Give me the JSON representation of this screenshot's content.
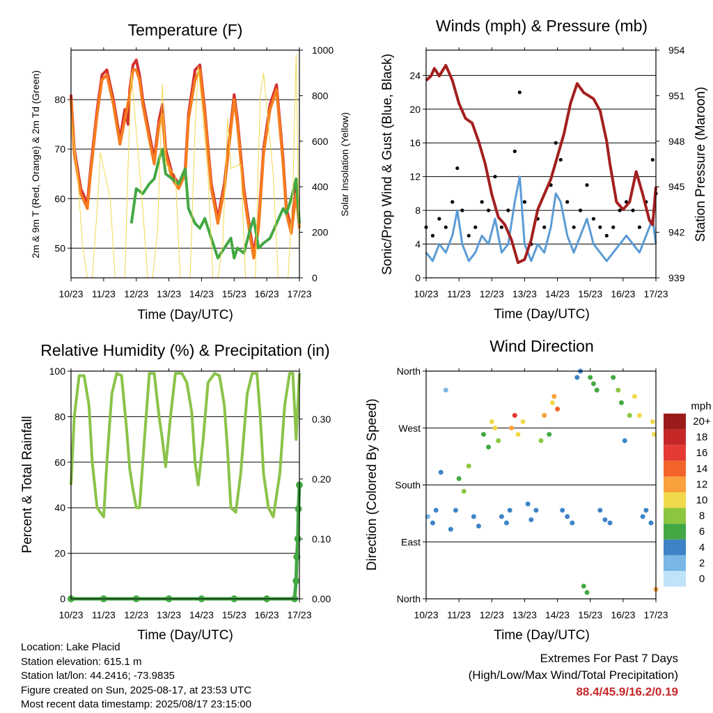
{
  "chart_data": [
    {
      "type": "line",
      "title": "Temperature (F)",
      "xlabel": "Time (Day/UTC)",
      "ylabel": "2m & 9m T (Red, Orange) & 2m Td (Green)",
      "y2label": "Solar Insolation (Yellow)",
      "x_tick_labels": [
        "10/23",
        "11/23",
        "12/23",
        "13/23",
        "14/23",
        "15/23",
        "16/23",
        "17/23"
      ],
      "ylim": [
        44,
        90
      ],
      "y_ticks": [
        50,
        60,
        70,
        80
      ],
      "y2lim": [
        0,
        1000
      ],
      "y2_ticks": [
        0,
        200,
        400,
        600,
        800,
        1000
      ],
      "grid": "horizontal",
      "series": [
        {
          "color": "#d32f2f",
          "x": [
            10.0,
            10.1,
            10.3,
            10.5,
            10.6,
            10.8,
            10.95,
            11.1,
            11.3,
            11.5,
            11.65,
            11.75,
            11.8,
            11.9,
            12.0,
            12.1,
            12.2,
            12.4,
            12.55,
            12.7,
            12.8,
            12.9,
            13.1,
            13.3,
            13.5,
            13.6,
            13.8,
            13.95,
            14.1,
            14.3,
            14.5,
            14.7,
            14.9,
            15.0,
            15.1,
            15.3,
            15.5,
            15.6,
            15.75,
            15.9,
            16.1,
            16.3,
            16.5,
            16.6,
            16.75,
            16.9,
            17.0
          ],
          "y": [
            81,
            70,
            62,
            59,
            66,
            78,
            85,
            86,
            80,
            72,
            78,
            75,
            82,
            87,
            88,
            85,
            80,
            73,
            68,
            76,
            79,
            70,
            65,
            63,
            66,
            77,
            86,
            87,
            78,
            63,
            56,
            63,
            75,
            81,
            76,
            62,
            53,
            49,
            55,
            70,
            79,
            83,
            68,
            58,
            54,
            62,
            55
          ]
        },
        {
          "color": "#f57c1f",
          "x": [
            10.0,
            10.1,
            10.3,
            10.5,
            10.6,
            10.8,
            10.95,
            11.1,
            11.3,
            11.5,
            11.8,
            11.9,
            12.0,
            12.1,
            12.2,
            12.4,
            12.55,
            12.7,
            12.8,
            12.9,
            13.1,
            13.3,
            13.5,
            13.6,
            13.8,
            13.95,
            14.1,
            14.3,
            14.5,
            14.7,
            14.9,
            15.0,
            15.1,
            15.3,
            15.5,
            15.6,
            15.75,
            15.9,
            16.1,
            16.3,
            16.5,
            16.6,
            16.75,
            16.9,
            17.0
          ],
          "y": [
            80,
            69,
            61,
            58,
            65,
            77,
            84,
            85,
            79,
            71,
            81,
            86,
            86,
            84,
            79,
            72,
            67,
            75,
            77,
            69,
            64,
            62,
            65,
            76,
            84,
            86,
            77,
            62,
            55,
            62,
            74,
            80,
            75,
            61,
            52,
            48,
            54,
            69,
            78,
            82,
            67,
            57,
            53,
            61,
            54
          ]
        },
        {
          "color": "#43a843",
          "x": [
            11.85,
            12.0,
            12.2,
            12.4,
            12.55,
            12.7,
            12.8,
            12.9,
            13.1,
            13.3,
            13.5,
            13.6,
            13.8,
            13.95,
            14.1,
            14.3,
            14.5,
            14.7,
            14.9,
            15.0,
            15.1,
            15.3,
            15.5,
            15.6,
            15.75,
            15.9,
            16.1,
            16.3,
            16.5,
            16.6,
            16.75,
            16.9,
            17.0
          ],
          "y": [
            55,
            62,
            61,
            63,
            64,
            68,
            70,
            65,
            64,
            63,
            66,
            58,
            55,
            54,
            56,
            52,
            48,
            50,
            52,
            48,
            50,
            49,
            54,
            56,
            50,
            51,
            52,
            55,
            58,
            57,
            60,
            64,
            55
          ]
        },
        {
          "color": "#f2d84b",
          "x": [
            10.0,
            10.2,
            10.35,
            10.5,
            10.65,
            10.8,
            10.9,
            11.2,
            11.35,
            11.5,
            11.65,
            11.75,
            11.85,
            12.2,
            12.35,
            12.5,
            12.65,
            12.8,
            12.9,
            13.2,
            13.35,
            13.5,
            13.65,
            13.8,
            13.9,
            14.2,
            14.35,
            14.5,
            14.65,
            14.8,
            14.9,
            15.2,
            15.35,
            15.5,
            15.65,
            15.8,
            15.9,
            16.2,
            16.35,
            16.5,
            16.65,
            16.8,
            16.9,
            17.0
          ],
          "y": [
            700,
            450,
            150,
            0,
            0,
            300,
            550,
            350,
            0,
            0,
            0,
            500,
            900,
            300,
            0,
            0,
            200,
            850,
            500,
            450,
            0,
            0,
            0,
            650,
            930,
            450,
            0,
            0,
            150,
            700,
            480,
            500,
            0,
            0,
            0,
            800,
            900,
            450,
            0,
            0,
            0,
            380,
            980,
            100
          ]
        }
      ]
    },
    {
      "type": "line",
      "title": "Winds (mph) & Pressure (mb)",
      "xlabel": "Time (Day/UTC)",
      "ylabel": "Sonic/Prop Wind & Gust (Blue, Black)",
      "y2label": "Station Pressure (Maroon)",
      "x_tick_labels": [
        "10/23",
        "11/23",
        "12/23",
        "13/23",
        "14/23",
        "15/23",
        "16/23",
        "17/23"
      ],
      "ylim": [
        0,
        27
      ],
      "y_ticks": [
        0,
        4,
        8,
        12,
        16,
        20,
        24
      ],
      "y2lim": [
        939,
        954
      ],
      "y2_ticks": [
        939,
        942,
        945,
        948,
        951,
        954
      ],
      "grid": "horizontal",
      "series": [
        {
          "color": "#5b9bd5",
          "x": [
            10.0,
            10.2,
            10.4,
            10.6,
            10.8,
            10.95,
            11.1,
            11.3,
            11.5,
            11.7,
            11.9,
            12.1,
            12.3,
            12.5,
            12.7,
            12.85,
            13.0,
            13.2,
            13.4,
            13.6,
            13.8,
            13.95,
            14.1,
            14.3,
            14.5,
            14.7,
            14.9,
            15.1,
            15.3,
            15.5,
            15.7,
            15.9,
            16.1,
            16.3,
            16.5,
            16.7,
            16.9,
            17.0
          ],
          "y": [
            3,
            2,
            4,
            3,
            5,
            8,
            4,
            2,
            3,
            5,
            4,
            7,
            3,
            4,
            9,
            12,
            4,
            2,
            4,
            3,
            6,
            10,
            9,
            5,
            3,
            5,
            7,
            4,
            3,
            2,
            3,
            4,
            5,
            4,
            3,
            5,
            7,
            4
          ]
        },
        {
          "color": "#000000",
          "x": [
            10.0,
            10.2,
            10.4,
            10.6,
            10.8,
            10.95,
            11.1,
            11.3,
            11.5,
            11.7,
            11.9,
            12.1,
            12.3,
            12.5,
            12.7,
            12.85,
            13.0,
            13.2,
            13.4,
            13.6,
            13.8,
            13.95,
            14.1,
            14.3,
            14.5,
            14.7,
            14.9,
            15.1,
            15.3,
            15.5,
            15.7,
            15.9,
            16.1,
            16.3,
            16.5,
            16.7,
            16.9,
            17.0
          ],
          "y": [
            6,
            5,
            7,
            6,
            9,
            13,
            8,
            5,
            6,
            9,
            8,
            12,
            6,
            8,
            15,
            22,
            9,
            4,
            7,
            6,
            11,
            16,
            14,
            9,
            6,
            8,
            11,
            7,
            6,
            5,
            6,
            8,
            9,
            8,
            6,
            9,
            14,
            10
          ]
        },
        {
          "color": "#a31f1f",
          "x": [
            10.0,
            10.15,
            10.25,
            10.4,
            10.6,
            10.8,
            11.0,
            11.2,
            11.4,
            11.6,
            11.8,
            12.0,
            12.2,
            12.4,
            12.6,
            12.8,
            13.0,
            13.2,
            13.4,
            13.6,
            13.8,
            14.0,
            14.2,
            14.4,
            14.6,
            14.8,
            14.95,
            15.1,
            15.3,
            15.5,
            15.6,
            15.8,
            16.0,
            16.2,
            16.4,
            16.6,
            16.8,
            16.9,
            17.0
          ],
          "y": [
            952.0,
            952.3,
            952.8,
            952.3,
            953.0,
            952.0,
            950.5,
            949.5,
            949.2,
            948.0,
            946.5,
            944.5,
            943.0,
            942.5,
            941.5,
            940.0,
            940.2,
            941.5,
            943.5,
            944.5,
            945.5,
            947.0,
            948.5,
            950.5,
            951.8,
            951.2,
            951.0,
            950.8,
            950.0,
            948.0,
            946.5,
            944.0,
            943.5,
            944.0,
            946.0,
            944.5,
            942.8,
            942.5,
            945.0
          ]
        }
      ]
    },
    {
      "type": "line",
      "title": "Relative Humidity (%) & Precipitation (in)",
      "xlabel": "Time (Day/UTC)",
      "ylabel": "Percent & Total Rainfall",
      "x_tick_labels": [
        "10/23",
        "11/23",
        "12/23",
        "13/23",
        "14/23",
        "15/23",
        "16/23",
        "17/23"
      ],
      "ylim": [
        0,
        100
      ],
      "y_ticks": [
        0,
        20,
        40,
        60,
        80,
        100
      ],
      "y2lim": [
        0,
        0.38
      ],
      "y2_ticks": [
        0.0,
        0.1,
        0.2,
        0.3
      ],
      "y2_tick_labels": [
        "0.00",
        "0.10",
        "0.20",
        "0.30"
      ],
      "grid": "horizontal",
      "series": [
        {
          "color": "#8bc34a",
          "x": [
            10.0,
            10.1,
            10.25,
            10.4,
            10.55,
            10.65,
            10.8,
            11.0,
            11.1,
            11.25,
            11.4,
            11.55,
            11.7,
            11.8,
            11.9,
            12.0,
            12.1,
            12.25,
            12.4,
            12.55,
            12.7,
            12.8,
            12.9,
            13.05,
            13.2,
            13.4,
            13.55,
            13.7,
            13.8,
            13.9,
            14.05,
            14.2,
            14.4,
            14.55,
            14.7,
            14.8,
            14.9,
            15.05,
            15.2,
            15.4,
            15.55,
            15.7,
            15.8,
            15.9,
            16.05,
            16.2,
            16.4,
            16.55,
            16.7,
            16.8,
            16.9,
            17.0
          ],
          "y": [
            50,
            80,
            98,
            98,
            85,
            60,
            40,
            36,
            60,
            90,
            99,
            98,
            75,
            57,
            48,
            40,
            40,
            70,
            99,
            99,
            80,
            70,
            58,
            80,
            99,
            99,
            95,
            82,
            60,
            50,
            70,
            95,
            99,
            98,
            85,
            65,
            40,
            38,
            55,
            90,
            99,
            99,
            80,
            55,
            40,
            36,
            55,
            85,
            99,
            99,
            70,
            99
          ]
        },
        {
          "color": "#43a843",
          "axis": "y2",
          "x": [
            10.0,
            11.0,
            12.0,
            13.0,
            14.0,
            15.0,
            16.0,
            16.85,
            16.9,
            16.92,
            16.95,
            16.97,
            17.0
          ],
          "y": [
            0.0,
            0.0,
            0.0,
            0.0,
            0.0,
            0.0,
            0.0,
            0.0,
            0.03,
            0.07,
            0.1,
            0.15,
            0.19
          ]
        }
      ]
    },
    {
      "type": "scatter",
      "title": "Wind Direction",
      "xlabel": "Time (Day/UTC)",
      "ylabel": "Direction (Colored By Speed)",
      "x_tick_labels": [
        "10/23",
        "11/23",
        "12/23",
        "13/23",
        "14/23",
        "15/23",
        "16/23",
        "17/23"
      ],
      "ylim": [
        0,
        360
      ],
      "y_ticks": [
        0,
        90,
        180,
        270,
        360
      ],
      "y_tick_labels": [
        "North",
        "East",
        "South",
        "West",
        "North"
      ],
      "grid": "horizontal",
      "colorbar": {
        "title": "mph",
        "labels": [
          "20+",
          "18",
          "16",
          "14",
          "12",
          "10",
          "8",
          "6",
          "4",
          "2",
          "0"
        ],
        "colors": [
          "#9b1b1b",
          "#c62828",
          "#e53935",
          "#f2642a",
          "#f9a13c",
          "#f2d84b",
          "#8cc63f",
          "#43a843",
          "#3d84c6",
          "#7ab7e6",
          "#bfe3f7"
        ]
      },
      "series": [
        {
          "x": [
            10.05,
            10.2,
            10.3,
            10.45,
            10.6,
            10.75,
            10.9,
            11.0,
            11.15,
            11.3,
            11.45,
            11.6,
            11.75,
            11.9,
            12.0,
            12.1,
            12.2,
            12.3,
            12.45,
            12.55,
            12.6,
            12.7,
            12.8,
            12.95,
            13.1,
            13.2,
            13.35,
            13.5,
            13.6,
            13.75,
            13.85,
            13.9,
            14.0,
            14.15,
            14.3,
            14.45,
            14.6,
            14.7,
            14.8,
            14.9,
            15.0,
            15.1,
            15.2,
            15.3,
            15.45,
            15.6,
            15.7,
            15.85,
            15.95,
            16.05,
            16.2,
            16.35,
            16.5,
            16.6,
            16.7,
            16.85,
            16.9,
            16.95,
            17.0
          ],
          "y": [
            130,
            120,
            140,
            200,
            330,
            110,
            140,
            190,
            170,
            210,
            130,
            115,
            260,
            240,
            280,
            270,
            250,
            130,
            120,
            140,
            270,
            290,
            260,
            280,
            150,
            125,
            140,
            250,
            290,
            260,
            310,
            320,
            300,
            140,
            130,
            120,
            350,
            360,
            20,
            10,
            350,
            340,
            330,
            140,
            125,
            120,
            350,
            330,
            310,
            250,
            290,
            320,
            290,
            130,
            140,
            120,
            280,
            260,
            15
          ],
          "speed": [
            2,
            3,
            4,
            4,
            2,
            3,
            3,
            5,
            7,
            8,
            3,
            4,
            6,
            5,
            9,
            10,
            7,
            3,
            4,
            4,
            12,
            16,
            10,
            9,
            4,
            4,
            3,
            7,
            11,
            5,
            9,
            12,
            13,
            4,
            4,
            3,
            4,
            3,
            5,
            6,
            5,
            6,
            5,
            4,
            3,
            3,
            5,
            7,
            6,
            4,
            8,
            9,
            10,
            3,
            4,
            3,
            9,
            10,
            12
          ]
        }
      ]
    }
  ],
  "footer": {
    "location": "Location: Lake Placid",
    "elevation": "Station elevation: 615.1 m",
    "latlon": "Station lat/lon: 44.2416; -73.9835",
    "created": "Figure created on Sun, 2025-08-17, at 23:53 UTC",
    "recent": "Most recent data timestamp: 2025/08/17 23:15:00",
    "extremes_title": "Extremes For Past 7 Days",
    "extremes_sub": "(High/Low/Max Wind/Total Precipitation)",
    "extremes_values": "88.4/45.9/16.2/0.19"
  }
}
